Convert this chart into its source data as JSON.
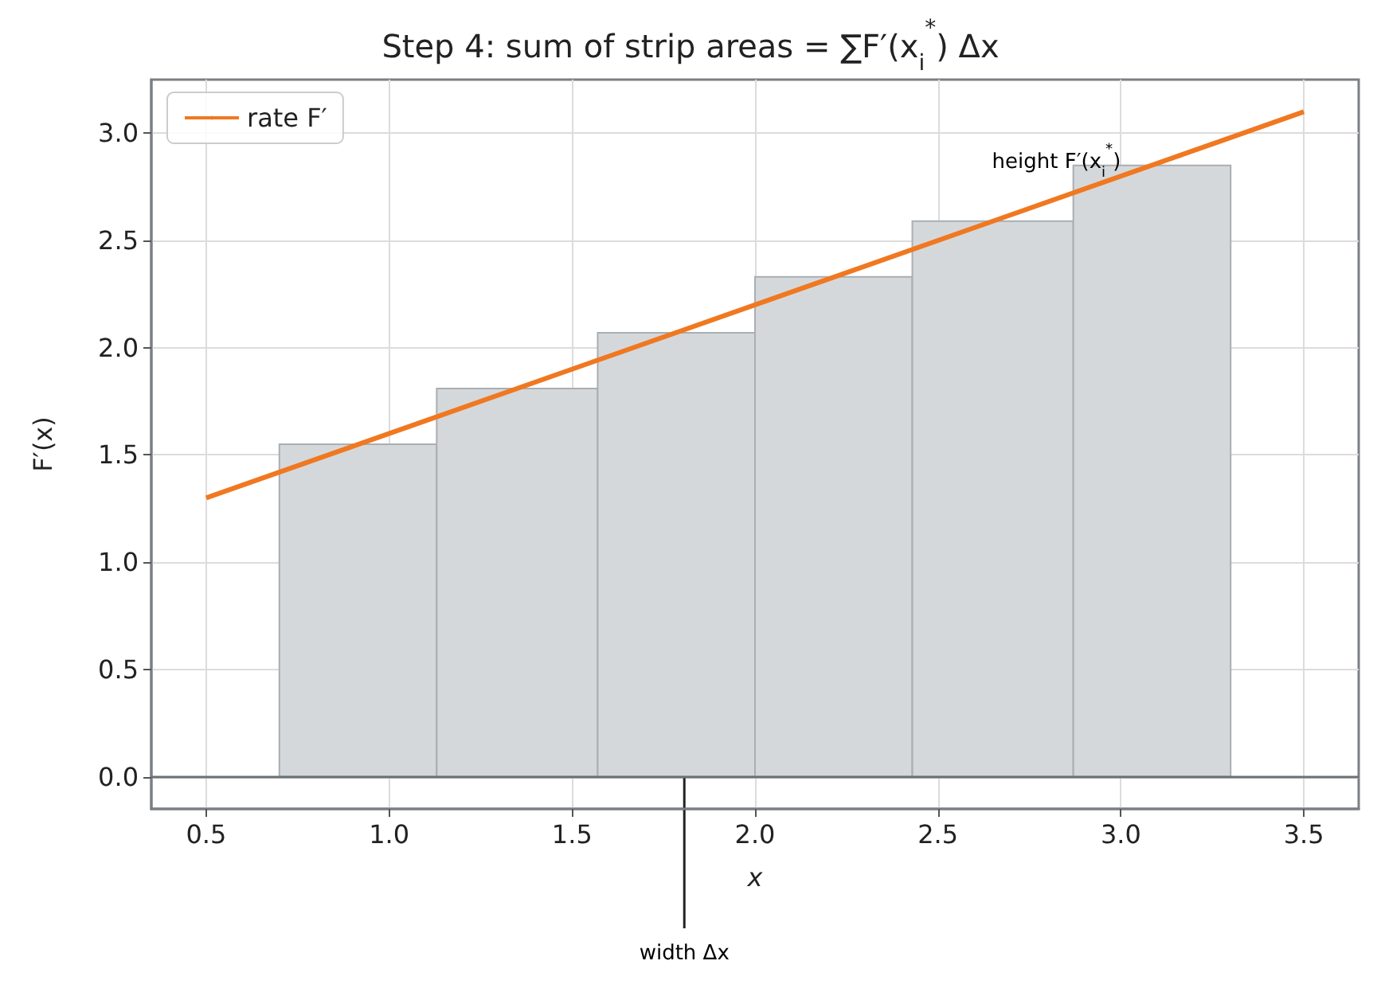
{
  "chart_data": {
    "type": "histogram",
    "title": "Step 4: sum of strip areas = ∑F′(x$_{i}$$^{*}$) Δx",
    "xlabel": "x",
    "ylabel": "F′(x)",
    "bins": [
      0.7,
      1.13,
      1.57,
      2.0,
      2.43,
      2.87,
      3.3
    ],
    "values": [
      1.55,
      1.81,
      2.07,
      2.33,
      2.59,
      2.85
    ],
    "color": "#d5d8db",
    "series": [
      {
        "type": "line",
        "name": "rate F′",
        "color": "#f07820",
        "x": [
          0.5,
          3.5
        ],
        "values": [
          1.3,
          3.1
        ],
        "marker": "none"
      }
    ],
    "xlim": [
      0.35,
      3.65
    ],
    "ylim": [
      -0.15,
      3.25
    ],
    "xticks": [
      {
        "value": 0.5,
        "label": "0.5"
      },
      {
        "value": 1,
        "label": "1.0"
      },
      {
        "value": 1.5,
        "label": "1.5"
      },
      {
        "value": 2,
        "label": "2.0"
      },
      {
        "value": 2.5,
        "label": "2.5"
      },
      {
        "value": 3,
        "label": "3.0"
      },
      {
        "value": 3.5,
        "label": "3.5"
      }
    ],
    "yticks": [
      {
        "value": 0,
        "label": "0.0"
      },
      {
        "value": 0.5,
        "label": "0.5"
      },
      {
        "value": 1,
        "label": "1.0"
      },
      {
        "value": 1.5,
        "label": "1.5"
      },
      {
        "value": 2,
        "label": "2.0"
      },
      {
        "value": 2.5,
        "label": "2.5"
      },
      {
        "value": 3,
        "label": "3.0"
      }
    ],
    "ref_lines": [
      {
        "axis": "y",
        "value": 0,
        "color": "#6b7075"
      }
    ],
    "annotations": [
      "height F′(x$_{i}$$^{*}$)",
      "width Δx"
    ],
    "grid": true,
    "legend": "top left"
  }
}
